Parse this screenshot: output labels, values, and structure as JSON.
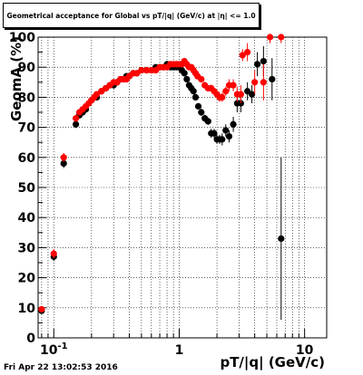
{
  "title": "Geometrical acceptance for Global vs pT/|q| (GeV/c) at |η| <= 1.0",
  "timestamp": "Fri Apr 22 13:02:53 2016",
  "chart_data": {
    "type": "scatter",
    "title": "Geometrical acceptance for Global vs pT/|q| (GeV/c) at |η| <= 1.0",
    "xlabel": "pT/|q| (GeV/c)",
    "ylabel": "GeomA (%)",
    "xscale": "log",
    "xlim": [
      0.075,
      15
    ],
    "ylim": [
      0,
      100
    ],
    "grid": true,
    "x_tick_labels": [
      {
        "label": "10^-1",
        "value": 0.1
      },
      {
        "label": "1",
        "value": 1
      },
      {
        "label": "10",
        "value": 10
      }
    ],
    "y_tick_labels": [
      "0",
      "10",
      "20",
      "30",
      "40",
      "50",
      "60",
      "70",
      "80",
      "90",
      "100"
    ],
    "series": [
      {
        "color": "#000000",
        "points": [
          [
            0.08,
            9,
            0.003,
            1
          ],
          [
            0.1,
            27,
            0.004,
            1.5
          ],
          [
            0.12,
            58,
            0.005,
            1.5
          ],
          [
            0.15,
            71,
            0.004,
            1.2
          ],
          [
            0.16,
            74,
            0.004,
            1
          ],
          [
            0.17,
            75,
            0.004,
            1
          ],
          [
            0.18,
            76,
            0.004,
            1
          ],
          [
            0.2,
            79,
            0.004,
            1
          ],
          [
            0.22,
            80,
            0.005,
            1
          ],
          [
            0.24,
            82,
            0.005,
            1
          ],
          [
            0.26,
            83,
            0.005,
            1
          ],
          [
            0.28,
            84,
            0.005,
            1
          ],
          [
            0.3,
            84,
            0.005,
            1
          ],
          [
            0.32,
            85,
            0.005,
            1
          ],
          [
            0.34,
            86,
            0.006,
            1
          ],
          [
            0.36,
            86,
            0.006,
            1
          ],
          [
            0.38,
            87,
            0.006,
            1
          ],
          [
            0.4,
            87,
            0.007,
            1
          ],
          [
            0.43,
            88,
            0.007,
            1
          ],
          [
            0.46,
            88,
            0.007,
            1
          ],
          [
            0.5,
            89,
            0.008,
            1
          ],
          [
            0.55,
            89,
            0.01,
            1
          ],
          [
            0.6,
            89,
            0.01,
            1
          ],
          [
            0.65,
            90,
            0.01,
            1
          ],
          [
            0.7,
            90,
            0.012,
            1
          ],
          [
            0.75,
            90,
            0.012,
            1
          ],
          [
            0.8,
            91,
            0.014,
            1
          ],
          [
            0.85,
            90,
            0.014,
            1
          ],
          [
            0.9,
            90,
            0.015,
            1
          ],
          [
            0.95,
            90,
            0.015,
            1
          ],
          [
            1.0,
            90,
            0.016,
            1
          ],
          [
            1.05,
            89,
            0.018,
            1
          ],
          [
            1.1,
            88,
            0.018,
            1
          ],
          [
            1.15,
            86,
            0.02,
            1
          ],
          [
            1.2,
            84,
            0.02,
            1
          ],
          [
            1.25,
            83,
            0.02,
            1
          ],
          [
            1.3,
            82,
            0.02,
            1
          ],
          [
            1.35,
            80,
            0.02,
            1
          ],
          [
            1.42,
            77,
            0.025,
            1
          ],
          [
            1.5,
            75,
            0.025,
            1.2
          ],
          [
            1.6,
            73,
            0.03,
            1.2
          ],
          [
            1.7,
            72,
            0.03,
            1.2
          ],
          [
            1.8,
            68,
            0.03,
            1.5
          ],
          [
            1.9,
            68,
            0.03,
            1.5
          ],
          [
            2.0,
            66,
            0.04,
            1.5
          ],
          [
            2.1,
            66,
            0.04,
            1.5
          ],
          [
            2.2,
            66,
            0.04,
            2
          ],
          [
            2.35,
            69,
            0.05,
            2
          ],
          [
            2.5,
            67,
            0.05,
            2
          ],
          [
            2.7,
            71,
            0.05,
            2.5
          ],
          [
            2.9,
            78,
            0.06,
            3
          ],
          [
            3.1,
            78,
            0.06,
            3
          ],
          [
            3.5,
            82,
            0.08,
            3
          ],
          [
            3.8,
            81,
            0.08,
            3
          ],
          [
            4.2,
            91,
            0.1,
            4
          ],
          [
            4.7,
            92,
            0.1,
            5
          ],
          [
            5.5,
            86,
            0.15,
            7
          ],
          [
            6.5,
            33,
            0.3,
            27
          ]
        ]
      },
      {
        "color": "#ff0000",
        "points": [
          [
            0.08,
            9.5,
            0.003,
            1
          ],
          [
            0.1,
            28,
            0.004,
            1.5
          ],
          [
            0.12,
            60,
            0.005,
            1.5
          ],
          [
            0.15,
            73,
            0.004,
            1.2
          ],
          [
            0.16,
            75,
            0.004,
            1
          ],
          [
            0.17,
            76,
            0.004,
            1
          ],
          [
            0.18,
            77,
            0.004,
            1
          ],
          [
            0.19,
            78,
            0.004,
            1
          ],
          [
            0.2,
            79,
            0.004,
            1
          ],
          [
            0.21,
            80,
            0.004,
            1
          ],
          [
            0.22,
            81,
            0.005,
            1
          ],
          [
            0.24,
            82,
            0.005,
            1
          ],
          [
            0.26,
            83,
            0.005,
            1
          ],
          [
            0.28,
            84,
            0.005,
            1
          ],
          [
            0.3,
            85,
            0.005,
            1
          ],
          [
            0.32,
            85,
            0.005,
            1
          ],
          [
            0.34,
            86,
            0.006,
            1
          ],
          [
            0.36,
            86,
            0.006,
            1
          ],
          [
            0.38,
            86,
            0.006,
            1
          ],
          [
            0.4,
            87,
            0.007,
            1
          ],
          [
            0.43,
            88,
            0.007,
            1
          ],
          [
            0.46,
            88,
            0.007,
            1
          ],
          [
            0.5,
            89,
            0.008,
            1
          ],
          [
            0.55,
            89,
            0.01,
            1
          ],
          [
            0.6,
            89,
            0.01,
            1
          ],
          [
            0.65,
            89,
            0.01,
            1
          ],
          [
            0.7,
            90,
            0.012,
            1
          ],
          [
            0.75,
            90,
            0.012,
            1
          ],
          [
            0.8,
            90,
            0.014,
            1
          ],
          [
            0.85,
            91,
            0.014,
            1
          ],
          [
            0.9,
            91,
            0.015,
            1
          ],
          [
            0.95,
            91,
            0.015,
            1
          ],
          [
            1.0,
            91,
            0.016,
            1
          ],
          [
            1.05,
            91,
            0.018,
            1
          ],
          [
            1.1,
            92,
            0.018,
            1
          ],
          [
            1.15,
            91,
            0.02,
            1
          ],
          [
            1.2,
            90,
            0.02,
            1
          ],
          [
            1.25,
            90,
            0.02,
            1
          ],
          [
            1.3,
            89,
            0.02,
            1
          ],
          [
            1.35,
            88,
            0.02,
            1
          ],
          [
            1.4,
            87,
            0.025,
            1
          ],
          [
            1.5,
            86,
            0.025,
            1
          ],
          [
            1.6,
            84,
            0.03,
            1
          ],
          [
            1.7,
            83,
            0.03,
            1
          ],
          [
            1.8,
            83,
            0.03,
            1.2
          ],
          [
            1.9,
            82,
            0.03,
            1.2
          ],
          [
            2.0,
            81,
            0.04,
            1.5
          ],
          [
            2.1,
            80,
            0.04,
            1.5
          ],
          [
            2.2,
            80,
            0.04,
            1.5
          ],
          [
            2.35,
            82,
            0.05,
            1.5
          ],
          [
            2.5,
            84,
            0.05,
            2
          ],
          [
            2.7,
            84,
            0.05,
            2
          ],
          [
            2.9,
            81,
            0.06,
            2.5
          ],
          [
            3.1,
            81,
            0.06,
            3
          ],
          [
            3.2,
            94,
            0.06,
            2
          ],
          [
            3.5,
            95,
            0.08,
            3
          ],
          [
            4.0,
            85,
            0.08,
            4
          ],
          [
            4.7,
            85,
            0.1,
            6
          ],
          [
            5.3,
            100,
            0.15,
            2
          ],
          [
            6.5,
            100,
            0.2,
            2
          ]
        ]
      }
    ]
  }
}
